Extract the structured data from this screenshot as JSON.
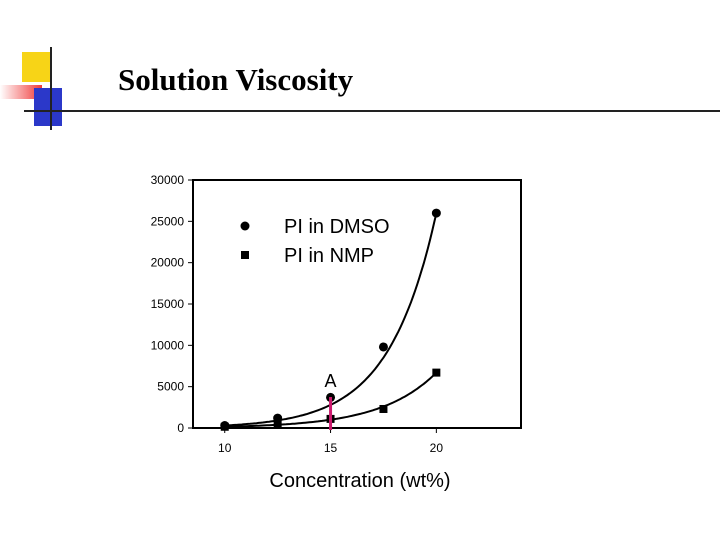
{
  "slide": {
    "title": "Solution Viscosity"
  },
  "chart_data": {
    "type": "scatter",
    "xlabel": "Concentration (wt%)",
    "ylabel": "",
    "xlim": [
      8.5,
      24
    ],
    "ylim": [
      0,
      30000
    ],
    "x_ticks": [
      "10",
      "15",
      "20"
    ],
    "y_ticks": [
      "0",
      "5000",
      "10000",
      "15000",
      "20000",
      "25000",
      "30000"
    ],
    "legend_position": "top-left",
    "grid": false,
    "series": [
      {
        "name": "PI in DMSO",
        "marker": "circle",
        "x": [
          10,
          12.5,
          15,
          17.5,
          20
        ],
        "values": [
          300,
          1200,
          3700,
          9800,
          26000
        ]
      },
      {
        "name": "PI in NMP",
        "marker": "square",
        "x": [
          10,
          12.5,
          15,
          17.5,
          20
        ],
        "values": [
          150,
          500,
          1100,
          2300,
          6700
        ]
      }
    ],
    "annotation": {
      "label": "A",
      "x": 15,
      "color": "#cc1a6e"
    }
  }
}
